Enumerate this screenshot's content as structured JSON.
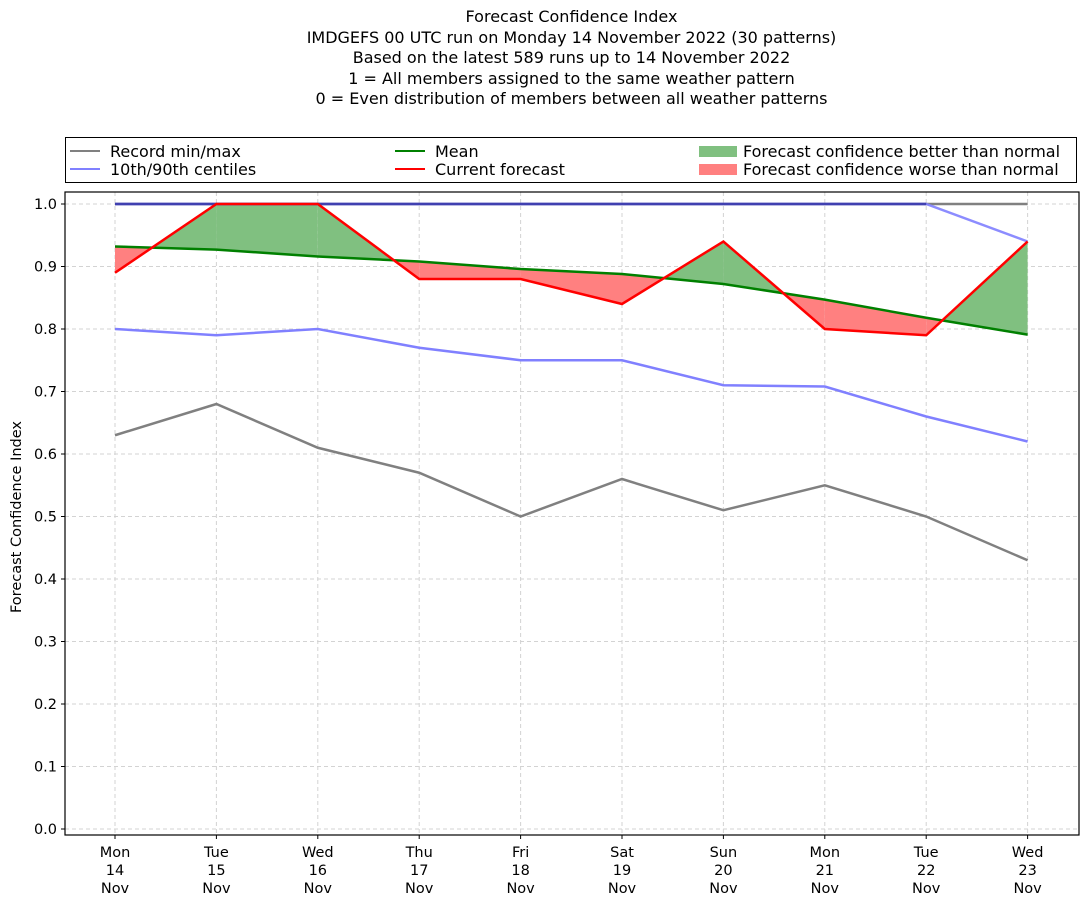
{
  "chart_data": {
    "type": "line",
    "title_lines": [
      "Forecast Confidence Index",
      "IMDGEFS 00 UTC run on Monday 14 November 2022 (30 patterns)",
      "Based on the latest 589 runs up to 14 November 2022",
      "1 = All members assigned to the same weather pattern",
      "0 = Even distribution of members between all weather patterns"
    ],
    "xlabel": "",
    "ylabel": "Forecast Confidence Index",
    "ylim": [
      0.0,
      1.0
    ],
    "yticks": [
      "0.0",
      "0.1",
      "0.2",
      "0.3",
      "0.4",
      "0.5",
      "0.6",
      "0.7",
      "0.8",
      "0.9",
      "1.0"
    ],
    "grid": true,
    "legend_position": "top, above plot, 3 columns",
    "categories": [
      {
        "day": "Mon",
        "date": "14",
        "month": "Nov"
      },
      {
        "day": "Tue",
        "date": "15",
        "month": "Nov"
      },
      {
        "day": "Wed",
        "date": "16",
        "month": "Nov"
      },
      {
        "day": "Thu",
        "date": "17",
        "month": "Nov"
      },
      {
        "day": "Fri",
        "date": "18",
        "month": "Nov"
      },
      {
        "day": "Sat",
        "date": "19",
        "month": "Nov"
      },
      {
        "day": "Sun",
        "date": "20",
        "month": "Nov"
      },
      {
        "day": "Mon",
        "date": "21",
        "month": "Nov"
      },
      {
        "day": "Tue",
        "date": "22",
        "month": "Nov"
      },
      {
        "day": "Wed",
        "date": "23",
        "month": "Nov"
      }
    ],
    "series": [
      {
        "name": "Record min",
        "legend": "Record min/max",
        "color": "#808080",
        "values": [
          0.63,
          0.68,
          0.61,
          0.57,
          0.5,
          0.56,
          0.51,
          0.55,
          0.5,
          0.43
        ]
      },
      {
        "name": "Record max",
        "legend": "Record min/max",
        "color": "#808080",
        "values": [
          1.0,
          1.0,
          1.0,
          1.0,
          1.0,
          1.0,
          1.0,
          1.0,
          1.0,
          1.0
        ]
      },
      {
        "name": "10th centile",
        "legend": "10th/90th centiles",
        "color": "#8080ff",
        "values": [
          0.8,
          0.79,
          0.8,
          0.77,
          0.75,
          0.75,
          0.71,
          0.708,
          0.66,
          0.62
        ]
      },
      {
        "name": "90th centile",
        "legend": "10th/90th centiles",
        "color": "#8080ff",
        "values": [
          1.0,
          1.0,
          1.0,
          1.0,
          1.0,
          1.0,
          1.0,
          1.0,
          1.0,
          0.94
        ]
      },
      {
        "name": "Mean",
        "legend": "Mean",
        "color": "#008000",
        "values": [
          0.932,
          0.927,
          0.916,
          0.908,
          0.896,
          0.888,
          0.872,
          0.847,
          0.818,
          0.791
        ]
      },
      {
        "name": "Current forecast",
        "legend": "Current forecast",
        "color": "#ff0000",
        "values": [
          0.89,
          1.0,
          1.0,
          0.88,
          0.88,
          0.84,
          0.94,
          0.8,
          0.79,
          0.94
        ]
      }
    ],
    "fills": [
      {
        "name": "Forecast confidence better than normal",
        "color": "#80c080",
        "condition": "current forecast above mean"
      },
      {
        "name": "Forecast confidence worse than normal",
        "color": "#ff8080",
        "condition": "current forecast below mean"
      }
    ]
  },
  "legend": {
    "record": "Record min/max",
    "centiles": "10th/90th centiles",
    "mean": "Mean",
    "current": "Current forecast",
    "better": "Forecast confidence better than normal",
    "worse": "Forecast confidence worse than normal"
  },
  "colors": {
    "record": "#808080",
    "centiles": "#8080ff",
    "centiles_overlap": "#4040b0",
    "mean": "#008000",
    "current": "#ff0000",
    "better": "#80c080",
    "worse": "#ff8080",
    "grid": "#d3d3d3"
  }
}
